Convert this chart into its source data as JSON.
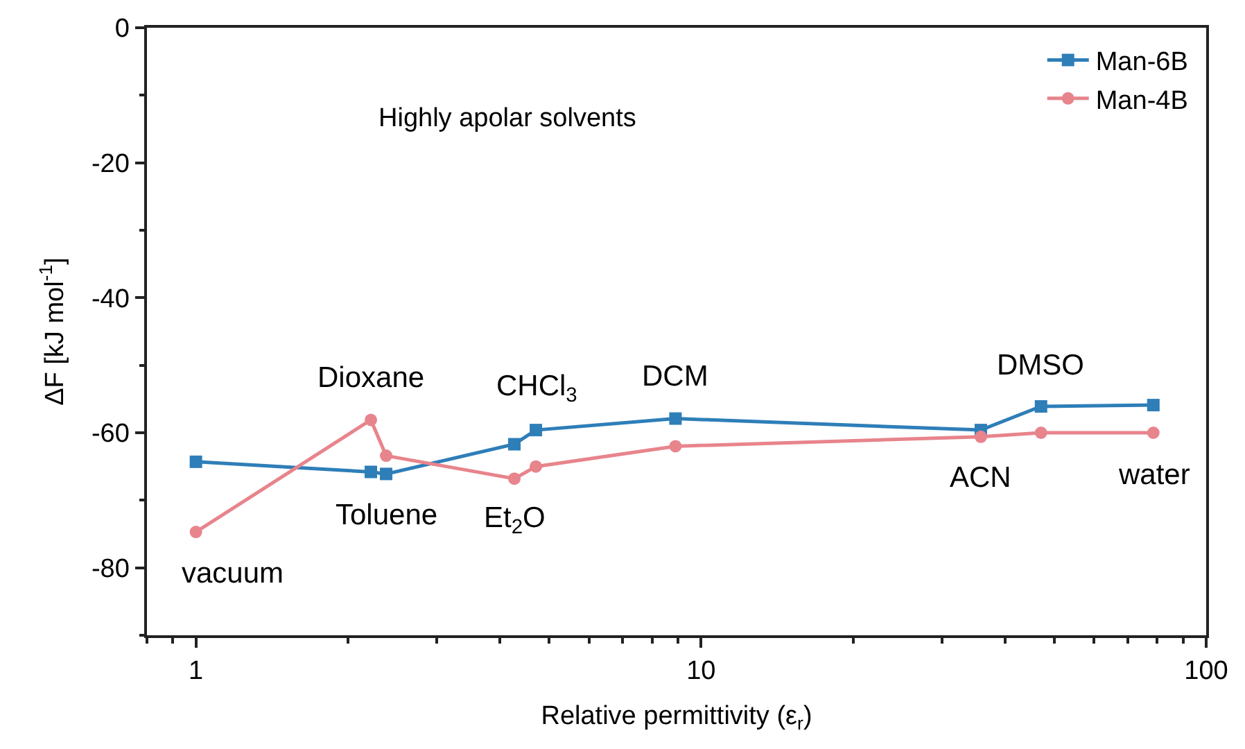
{
  "chart_data": {
    "type": "line",
    "xlabel": "Relative permittivity (ε$_{r}$)",
    "ylabel": "ΔF [kJ mol$^{-1}$]",
    "log": "x",
    "xlim": [
      0.8,
      100
    ],
    "xticks": [
      1,
      10,
      100
    ],
    "ylim": [
      -90,
      0
    ],
    "yticks": [
      0,
      -20,
      -40,
      -60,
      -80
    ],
    "legend": "top right",
    "line_style": "solid",
    "x": [
      1,
      2.22,
      2.38,
      4.27,
      4.71,
      8.9,
      35.8,
      47.1,
      78.6
    ],
    "series": [
      {
        "name": "Man-6B",
        "color": "#2e7eb8",
        "marker": "square",
        "values": [
          -64.3,
          -65.8,
          -66.1,
          -61.7,
          -59.6,
          -57.9,
          -59.6,
          -56.1,
          -55.9
        ]
      },
      {
        "name": "Man-4B",
        "color": "#e8848c",
        "marker": "circle",
        "values": [
          -74.7,
          -58.1,
          -63.4,
          -66.8,
          -65.0,
          -62.0,
          -60.6,
          -60.0,
          -60.0
        ]
      }
    ],
    "annotations": [
      "Highly apolar solvents",
      {
        "text": "vacuum",
        "x": 1,
        "y": -74.7
      },
      {
        "text": "Dioxane",
        "x": 2.22,
        "y": -58.1
      },
      {
        "text": "Toluene",
        "x": 2.38,
        "y": -66.1
      },
      {
        "text": "CHCl$_{3}$",
        "x": 4.71,
        "y": -59.6
      },
      {
        "text": "Et$_{2}$O",
        "x": 4.27,
        "y": -66.8
      },
      {
        "text": "DCM",
        "x": 8.9,
        "y": -57.9
      },
      {
        "text": "DMSO",
        "x": 47.1,
        "y": -56.1
      },
      {
        "text": "ACN",
        "x": 35.8,
        "y": -60.6
      },
      {
        "text": "water",
        "x": 78.6,
        "y": -60.0
      }
    ]
  }
}
